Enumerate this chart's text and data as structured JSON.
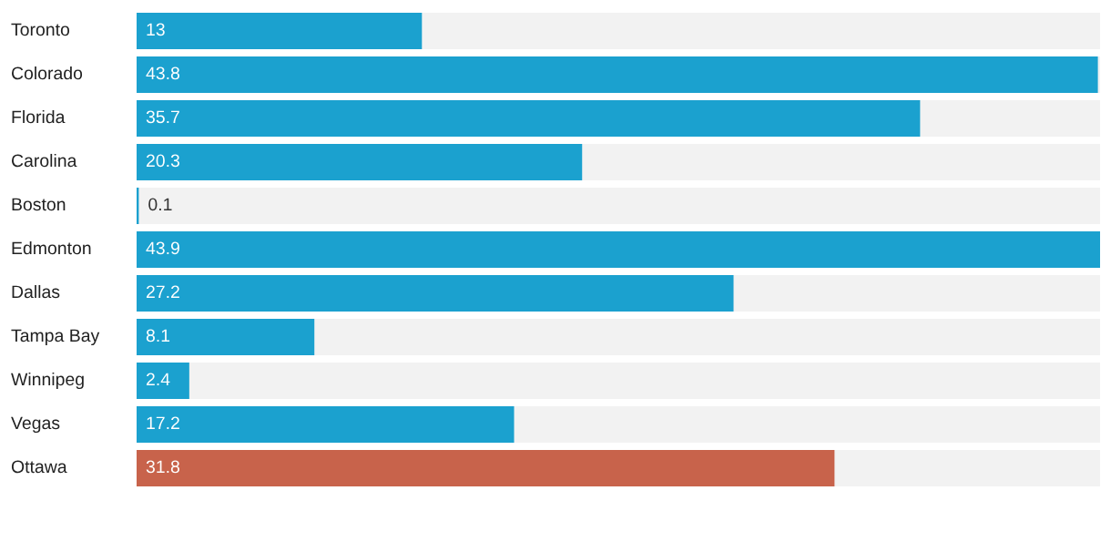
{
  "chart_data": {
    "type": "bar",
    "orientation": "horizontal",
    "categories": [
      "Toronto",
      "Colorado",
      "Florida",
      "Carolina",
      "Boston",
      "Edmonton",
      "Dallas",
      "Tampa Bay",
      "Winnipeg",
      "Vegas",
      "Ottawa"
    ],
    "values": [
      13,
      43.8,
      35.7,
      20.3,
      0.1,
      43.9,
      27.2,
      8.1,
      2.4,
      17.2,
      31.8
    ],
    "colors": [
      "#1ba1cf",
      "#1ba1cf",
      "#1ba1cf",
      "#1ba1cf",
      "#1ba1cf",
      "#1ba1cf",
      "#1ba1cf",
      "#1ba1cf",
      "#1ba1cf",
      "#1ba1cf",
      "#c8634b"
    ],
    "data_labels": true
  }
}
